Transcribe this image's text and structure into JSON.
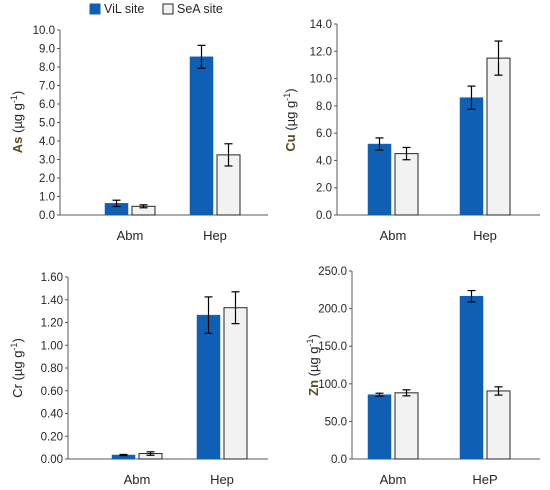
{
  "legend": {
    "position": "top",
    "entries": [
      {
        "name": "ViL site",
        "color": "#0F5FB4"
      },
      {
        "name": "SeA site",
        "color": "#F2F2F2"
      }
    ]
  },
  "chart_data": [
    {
      "type": "bar",
      "categories": [
        "Abm",
        "Hep"
      ],
      "ylabel": {
        "element": "As",
        "unit": "(µg g",
        "exp": "-1",
        "close": ")",
        "bold_element": true
      },
      "ylim": [
        0,
        10
      ],
      "yticks": [
        "0.0",
        "1.0",
        "2.0",
        "3.0",
        "4.0",
        "5.0",
        "6.0",
        "7.0",
        "8.0",
        "9.0",
        "10.0"
      ],
      "grid": false,
      "series": [
        {
          "name": "ViL site",
          "values": [
            0.63,
            8.55
          ],
          "errors": [
            0.17,
            0.62
          ]
        },
        {
          "name": "SeA site",
          "values": [
            0.47,
            3.25
          ],
          "errors": [
            0.08,
            0.6
          ]
        }
      ]
    },
    {
      "type": "bar",
      "categories": [
        "Abm",
        "Hep"
      ],
      "ylabel": {
        "element": "Cu",
        "unit": "(µg g",
        "exp": "-1",
        "close": ")",
        "bold_element": true
      },
      "ylim": [
        0,
        14
      ],
      "yticks": [
        "0.0",
        "2.0",
        "4.0",
        "6.0",
        "8.0",
        "10.0",
        "12.0",
        "14.0"
      ],
      "grid": false,
      "series": [
        {
          "name": "ViL site",
          "values": [
            5.2,
            8.6
          ],
          "errors": [
            0.45,
            0.85
          ]
        },
        {
          "name": "SeA site",
          "values": [
            4.5,
            11.5
          ],
          "errors": [
            0.45,
            1.25
          ]
        }
      ]
    },
    {
      "type": "bar",
      "categories": [
        "Abm",
        "Hep"
      ],
      "ylabel": {
        "element": "Cr",
        "unit": "(µg g",
        "exp": "-1",
        "close": ")",
        "bold_element": false
      },
      "ylim": [
        0,
        1.6
      ],
      "yticks": [
        "0.00",
        "0.20",
        "0.40",
        "0.60",
        "0.80",
        "1.00",
        "1.20",
        "1.40",
        "1.60"
      ],
      "grid": false,
      "series": [
        {
          "name": "ViL site",
          "values": [
            0.035,
            1.265
          ],
          "errors": [
            0.005,
            0.16
          ]
        },
        {
          "name": "SeA site",
          "values": [
            0.048,
            1.33
          ],
          "errors": [
            0.015,
            0.14
          ]
        }
      ]
    },
    {
      "type": "bar",
      "categories": [
        "Abm",
        "HeP"
      ],
      "ylabel": {
        "element": "Zn",
        "unit": "(µg g",
        "exp": "-1",
        "close": ")",
        "bold_element": true
      },
      "ylim": [
        0,
        250
      ],
      "yticks": [
        "0.0",
        "50.0",
        "100.0",
        "150.0",
        "200.0",
        "250.0"
      ],
      "grid": false,
      "series": [
        {
          "name": "ViL site",
          "values": [
            85.5,
            216.5
          ],
          "errors": [
            2.0,
            7.5
          ]
        },
        {
          "name": "SeA site",
          "values": [
            88.0,
            90.5
          ],
          "errors": [
            4.0,
            5.5
          ]
        }
      ]
    }
  ]
}
